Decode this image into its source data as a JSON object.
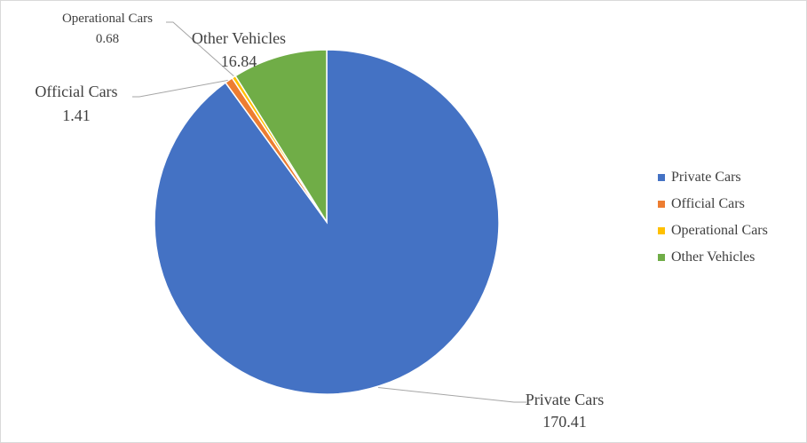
{
  "chart_data": {
    "type": "pie",
    "title": "",
    "slices": [
      {
        "label": "Private Cars",
        "value": 170.41,
        "color": "#4472C4"
      },
      {
        "label": "Official Cars",
        "value": 1.41,
        "color": "#ED7D31"
      },
      {
        "label": "Operational Cars",
        "value": 0.68,
        "color": "#FFC000"
      },
      {
        "label": "Other Vehicles",
        "value": 16.84,
        "color": "#70AD47"
      }
    ],
    "data_labels": [
      {
        "name": "Private Cars",
        "value": "170.41"
      },
      {
        "name": "Official Cars",
        "value": "1.41"
      },
      {
        "name": "Operational Cars",
        "value": "0.68"
      },
      {
        "name": "Other Vehicles",
        "value": "16.84"
      }
    ],
    "legend": {
      "position": "right",
      "items": [
        "Private Cars",
        "Official Cars",
        "Operational Cars",
        "Other Vehicles"
      ]
    }
  }
}
